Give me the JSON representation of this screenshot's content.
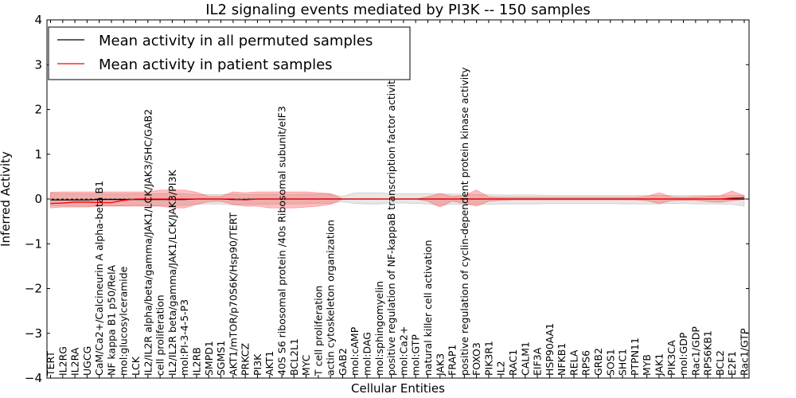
{
  "chart_data": {
    "type": "line",
    "title": "IL2 signaling events mediated by PI3K -- 150 samples",
    "xlabel": "Cellular Entities",
    "ylabel": "Inferred Activity",
    "ylim": [
      -4,
      4
    ],
    "yticks": [
      4,
      3,
      2,
      1,
      0,
      -1,
      -2,
      -3,
      -4
    ],
    "ytick_labels": [
      "4",
      "3",
      "2",
      "1",
      "0",
      "−1",
      "−2",
      "−3",
      "−4"
    ],
    "legend_position": "top-left",
    "categories": [
      "TERT",
      "IL2RG",
      "IL2RA",
      "UGCG",
      "CaM/Ca2+/Calcineurin A alpha-beta B1",
      "NF kappa B1 p50/RelA",
      "mol:glucosylceramide",
      "LCK",
      "IL2/IL2R alpha/beta/gamma/JAK1/LCK/JAK3/SHC/GAB2",
      "cell proliferation",
      "IL2/IL2R beta/gamma/JAK1/LCK/JAK3/PI3K",
      "mol:PI-3-4-5-P3",
      "IL2RB",
      "SMPD1",
      "SGMS1",
      "AKT1/mTOR/p70S6K/Hsp90/TERT",
      "PRKCZ",
      "PI3K",
      "AKT1",
      "40S S6 ribosomal protein /40s Ribosomal subunit/eIF3",
      "BCL2L1",
      "MYC",
      "T cell proliferation",
      "actin cytoskeleton organization",
      "GAB2",
      "mol:cAMP",
      "mol:DAG",
      "mol:sphingomyelin",
      "positive regulation of NF-kappaB transcription factor activity",
      "mol:Ca2+",
      "mol:GTP",
      "natural killer cell activation",
      "JAK3",
      "FRAP1",
      "positive regulation of cyclin-dependent protein kinase activity",
      "FOXO3",
      "PIK3R1",
      "IL2",
      "RAC1",
      "CALM1",
      "EIF3A",
      "HSP90AA1",
      "NFKB1",
      "RELA",
      "RPS6",
      "GRB2",
      "SOS1",
      "SHC1",
      "PTPN11",
      "MYB",
      "JAK1",
      "PIK3CA",
      "mol:GDP",
      "Rac1/GDP",
      "RPS6KB1",
      "BCL2",
      "E2F1",
      "Rac1/GTP"
    ],
    "series": [
      {
        "name": "Mean activity in all permuted samples",
        "color": "#000000",
        "values": [
          -0.02,
          -0.02,
          -0.02,
          -0.02,
          -0.01,
          -0.01,
          -0.01,
          -0.01,
          -0.01,
          -0.01,
          -0.01,
          -0.01,
          0.0,
          0.0,
          0.0,
          -0.01,
          -0.01,
          0.0,
          0.0,
          0.0,
          0.0,
          0.0,
          0.0,
          0.0,
          0.0,
          0.0,
          0.0,
          0.0,
          0.0,
          0.0,
          0.0,
          0.0,
          0.0,
          0.0,
          0.0,
          0.0,
          0.0,
          0.0,
          0.0,
          0.0,
          0.0,
          0.0,
          0.0,
          0.0,
          0.0,
          0.0,
          0.0,
          0.0,
          0.0,
          0.0,
          0.0,
          0.0,
          0.0,
          0.0,
          0.0,
          0.0,
          0.0,
          0.0
        ],
        "band_low": [
          -0.15,
          -0.16,
          -0.16,
          -0.16,
          -0.15,
          -0.15,
          -0.15,
          -0.14,
          -0.15,
          -0.15,
          -0.15,
          -0.14,
          -0.12,
          -0.11,
          -0.11,
          -0.14,
          -0.12,
          -0.12,
          -0.12,
          -0.11,
          -0.11,
          -0.11,
          -0.1,
          -0.1,
          -0.06,
          -0.1,
          -0.11,
          -0.11,
          -0.09,
          -0.09,
          -0.1,
          -0.11,
          -0.14,
          -0.12,
          -0.12,
          -0.12,
          -0.12,
          -0.11,
          -0.11,
          -0.11,
          -0.11,
          -0.1,
          -0.1,
          -0.1,
          -0.1,
          -0.1,
          -0.1,
          -0.11,
          -0.11,
          -0.11,
          -0.11,
          -0.1,
          -0.1,
          -0.11,
          -0.11,
          -0.11,
          -0.12,
          -0.16
        ],
        "band_high": [
          0.13,
          0.12,
          0.12,
          0.12,
          0.11,
          0.11,
          0.11,
          0.12,
          0.12,
          0.12,
          0.12,
          0.12,
          0.1,
          0.1,
          0.1,
          0.11,
          0.1,
          0.1,
          0.11,
          0.1,
          0.1,
          0.11,
          0.11,
          0.11,
          0.06,
          0.14,
          0.14,
          0.14,
          0.12,
          0.12,
          0.12,
          0.12,
          0.12,
          0.11,
          0.11,
          0.1,
          0.1,
          0.09,
          0.09,
          0.09,
          0.09,
          0.08,
          0.08,
          0.08,
          0.08,
          0.08,
          0.08,
          0.08,
          0.08,
          0.08,
          0.08,
          0.08,
          0.08,
          0.08,
          0.08,
          0.08,
          0.08,
          0.09
        ]
      },
      {
        "name": "Mean activity in patient samples",
        "color": "#ff0000",
        "values": [
          -0.1,
          -0.09,
          -0.07,
          -0.07,
          -0.08,
          -0.08,
          -0.03,
          0.0,
          0.0,
          0.0,
          0.0,
          0.0,
          0.0,
          0.0,
          0.0,
          0.0,
          -0.02,
          0.0,
          0.0,
          0.0,
          0.0,
          0.0,
          0.0,
          0.0,
          0.0,
          0.0,
          0.0,
          0.0,
          0.0,
          0.0,
          0.0,
          0.0,
          0.0,
          0.0,
          0.0,
          0.0,
          0.0,
          0.0,
          0.0,
          0.0,
          0.0,
          0.0,
          0.0,
          0.0,
          0.0,
          0.0,
          0.0,
          0.0,
          0.0,
          0.0,
          0.0,
          0.0,
          0.0,
          0.0,
          0.0,
          0.0,
          0.02,
          0.03
        ],
        "band_low": [
          -0.2,
          -0.18,
          -0.18,
          -0.18,
          -0.16,
          -0.16,
          -0.16,
          -0.16,
          -0.16,
          -0.16,
          -0.2,
          -0.2,
          -0.12,
          -0.06,
          -0.05,
          -0.12,
          -0.16,
          -0.16,
          -0.2,
          -0.2,
          -0.2,
          -0.18,
          -0.16,
          -0.12,
          0.0,
          0.0,
          0.0,
          0.0,
          0.0,
          0.0,
          0.0,
          -0.05,
          -0.18,
          -0.05,
          -0.1,
          -0.16,
          -0.05,
          -0.03,
          -0.02,
          -0.02,
          -0.02,
          -0.02,
          -0.02,
          -0.02,
          -0.02,
          -0.02,
          -0.02,
          -0.02,
          -0.02,
          -0.04,
          -0.1,
          -0.04,
          -0.03,
          -0.03,
          -0.06,
          -0.07,
          -0.04,
          -0.01
        ],
        "band_high": [
          0.15,
          0.16,
          0.16,
          0.16,
          0.16,
          0.16,
          0.16,
          0.16,
          0.16,
          0.2,
          0.2,
          0.2,
          0.15,
          0.06,
          0.06,
          0.16,
          0.14,
          0.16,
          0.16,
          0.16,
          0.16,
          0.16,
          0.14,
          0.12,
          0.0,
          0.0,
          0.0,
          0.0,
          0.0,
          0.0,
          0.0,
          0.05,
          0.12,
          0.06,
          0.08,
          0.2,
          0.05,
          0.04,
          0.04,
          0.04,
          0.04,
          0.04,
          0.04,
          0.04,
          0.04,
          0.04,
          0.04,
          0.04,
          0.04,
          0.06,
          0.14,
          0.05,
          0.04,
          0.05,
          0.06,
          0.07,
          0.18,
          0.07
        ]
      }
    ]
  }
}
